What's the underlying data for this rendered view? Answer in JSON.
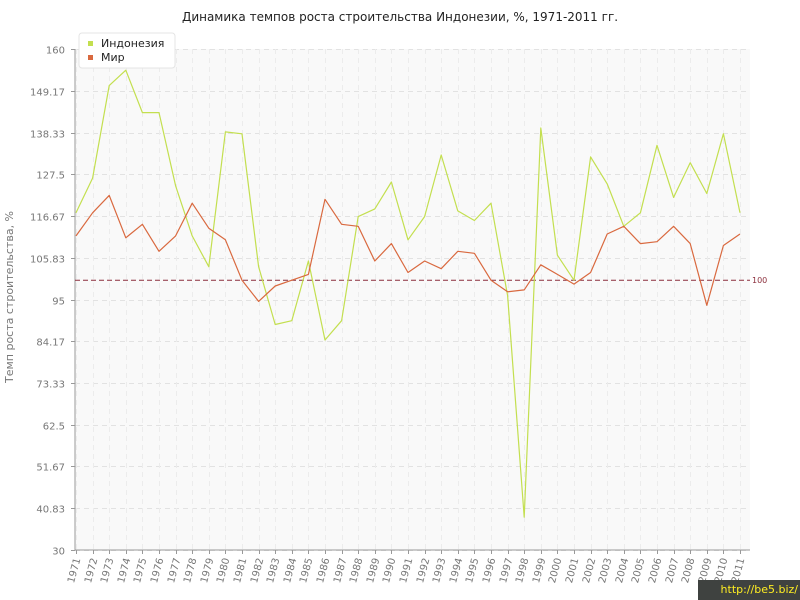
{
  "chart_data": {
    "type": "line",
    "title": "Динамика темпов роста строительства Индонезии, %, 1971-2011 гг.",
    "xlabel": "",
    "ylabel": "Темп роста строительства, %",
    "ylim": [
      30,
      160
    ],
    "y_ticks": [
      "30",
      "40.83",
      "51.67",
      "62.5",
      "73.33",
      "84.17",
      "95",
      "105.83",
      "116.67",
      "127.5",
      "138.33",
      "149.17",
      "160"
    ],
    "categories": [
      "1971",
      "1972",
      "1973",
      "1974",
      "1975",
      "1976",
      "1977",
      "1978",
      "1979",
      "1980",
      "1981",
      "1982",
      "1983",
      "1984",
      "1985",
      "1986",
      "1987",
      "1988",
      "1989",
      "1990",
      "1991",
      "1992",
      "1993",
      "1994",
      "1995",
      "1996",
      "1997",
      "1998",
      "1999",
      "2000",
      "2001",
      "2002",
      "2003",
      "2004",
      "2005",
      "2006",
      "2007",
      "2008",
      "2009",
      "2010",
      "2011"
    ],
    "series": [
      {
        "name": "Индонезия",
        "color": "#c3df4f",
        "values": [
          117.5,
          126.5,
          150.5,
          154.5,
          143.5,
          143.5,
          124.5,
          111.5,
          103.5,
          138.5,
          138,
          103.5,
          88.5,
          89.5,
          105,
          84.5,
          89.5,
          116.5,
          118.5,
          125.5,
          110.5,
          116.5,
          132.5,
          118,
          115.5,
          120,
          96,
          38.5,
          139.5,
          106.5,
          100,
          132,
          125,
          114,
          117.5,
          135,
          121.5,
          130.5,
          122.5,
          138,
          117.5
        ]
      },
      {
        "name": "Мир",
        "color": "#d9693f",
        "values": [
          111.5,
          117.5,
          122,
          111,
          114.5,
          107.5,
          111.5,
          120,
          113.5,
          110.5,
          100,
          94.5,
          98.5,
          100,
          101.5,
          121,
          114.5,
          114,
          105,
          109.5,
          102,
          105,
          103,
          107.5,
          107,
          100,
          97,
          97.5,
          104,
          101.5,
          99,
          102,
          112,
          114,
          109.5,
          110,
          114,
          109.5,
          93.5,
          109,
          112
        ]
      }
    ],
    "reference_line": {
      "value": 100,
      "label": "100",
      "color": "#8b2e3c"
    },
    "grid": true,
    "legend_position": "top-left"
  },
  "watermark": "http://be5.biz/"
}
